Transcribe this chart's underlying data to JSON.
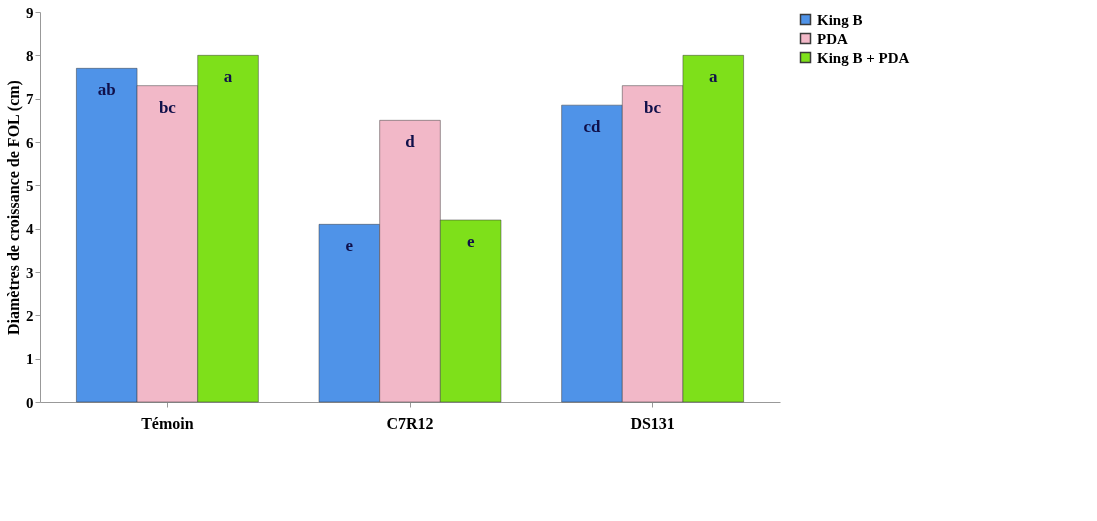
{
  "chart_data": {
    "type": "bar",
    "ylabel": "Diamètres de croissance de FOL (cm)",
    "categories": [
      "Témoin",
      "C7R12",
      "DS131"
    ],
    "series": [
      {
        "name": "King B",
        "color": "#4f93e8",
        "values": [
          7.7,
          4.1,
          6.85
        ],
        "value_labels": [
          "ab",
          "e",
          "cd"
        ]
      },
      {
        "name": "PDA",
        "color": "#f2b8c8",
        "values": [
          7.3,
          6.5,
          7.3
        ],
        "value_labels": [
          "bc",
          "d",
          "bc"
        ]
      },
      {
        "name": "King B + PDA",
        "color": "#7ee01a",
        "values": [
          8.0,
          4.2,
          8.0
        ],
        "value_labels": [
          "a",
          "e",
          "a"
        ]
      }
    ],
    "ylim": [
      0,
      9
    ],
    "yticks": [
      0,
      1,
      2,
      3,
      4,
      5,
      6,
      7,
      8,
      9
    ],
    "grid": false,
    "legend": "right"
  }
}
